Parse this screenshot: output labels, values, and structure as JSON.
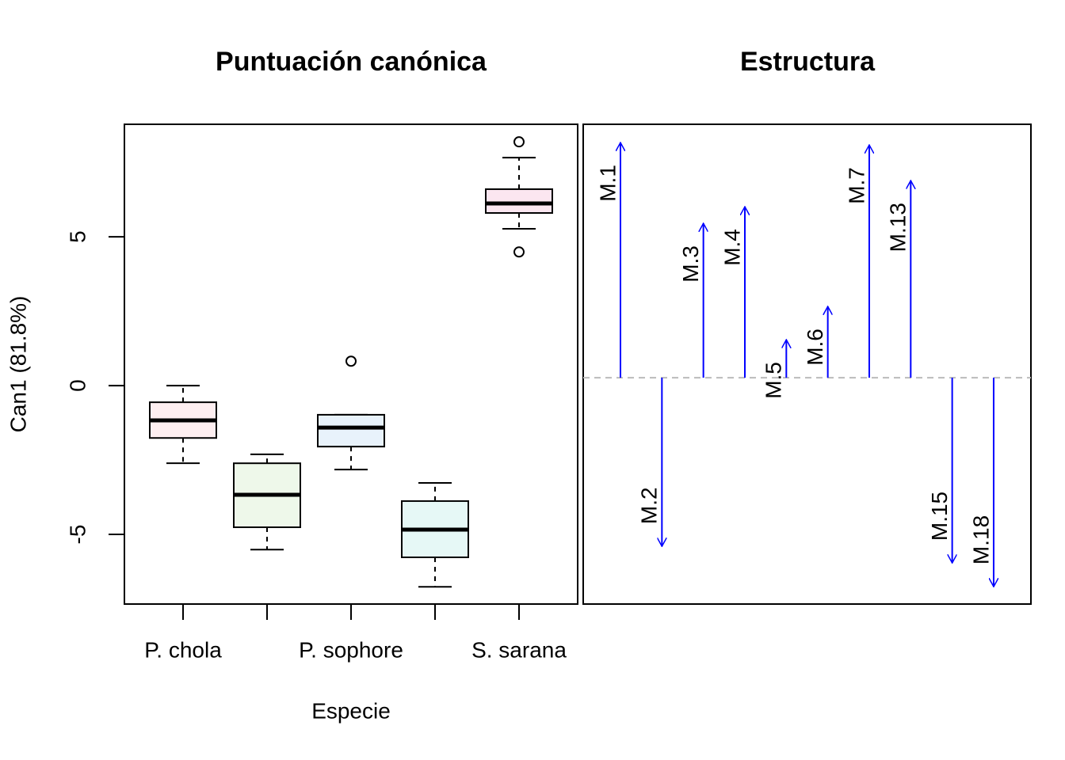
{
  "chart_data": [
    {
      "type": "box",
      "title": "Puntuación canónica",
      "x_label": "Especie",
      "y_label": "Can1 (81.8%)",
      "categories": [
        "P. chola",
        null,
        "P. sophore",
        null,
        "S. sarana"
      ],
      "colors": [
        "#fdeef0",
        "#eef8ea",
        "#e8f2fb",
        "#e6f8f6",
        "#fbe6f0"
      ],
      "boxes": [
        {
          "whisker_low": -2.61,
          "q1": -1.76,
          "median": -1.17,
          "q3": -0.56,
          "whisker_high": 0,
          "outliers": []
        },
        {
          "whisker_low": -5.51,
          "q1": -4.76,
          "median": -3.67,
          "q3": -2.61,
          "whisker_high": -2.31,
          "outliers": []
        },
        {
          "whisker_low": -2.82,
          "q1": -2.05,
          "median": -1.41,
          "q3": -0.98,
          "whisker_high": -0.98,
          "outliers": [
            0.82
          ]
        },
        {
          "whisker_low": -6.76,
          "q1": -5.77,
          "median": -4.84,
          "q3": -3.88,
          "whisker_high": -3.27,
          "outliers": []
        },
        {
          "whisker_low": 5.27,
          "q1": 5.8,
          "median": 6.12,
          "q3": 6.6,
          "whisker_high": 7.66,
          "outliers": [
            8.19,
            4.49
          ]
        }
      ],
      "ylim": [
        -7.34,
        8.78
      ],
      "yticks": [
        -5,
        0,
        5
      ]
    },
    {
      "type": "arrow",
      "title": "Estructura",
      "categories": [
        "M.1",
        "M.2",
        "M.3",
        "M.4",
        "M.5",
        "M.6",
        "M.7",
        "M.13",
        "M.15",
        "M.18"
      ],
      "values": [
        0.99,
        -0.71,
        0.65,
        0.72,
        0.16,
        0.3,
        0.98,
        0.83,
        -0.78,
        -0.88
      ],
      "color": "#0000ff",
      "ylim": [
        -0.953,
        1.067
      ]
    }
  ]
}
